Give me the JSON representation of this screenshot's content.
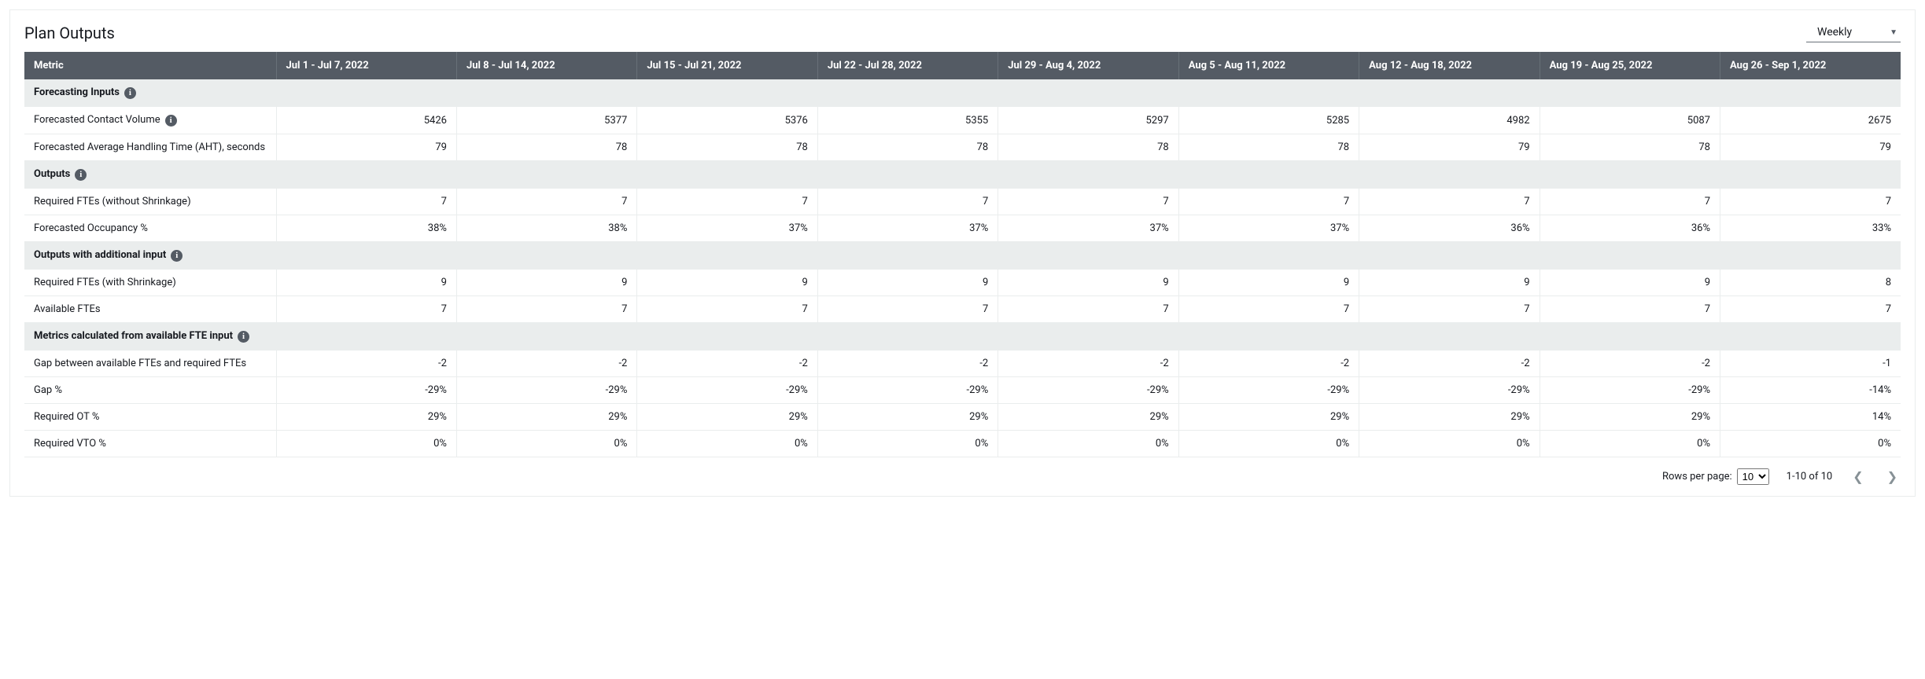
{
  "panel": {
    "title": "Plan Outputs",
    "period_selector_label": "Weekly"
  },
  "table": {
    "metric_header": "Metric",
    "columns": [
      "Jul 1 - Jul 7, 2022",
      "Jul 8 - Jul 14, 2022",
      "Jul 15 - Jul 21, 2022",
      "Jul 22 - Jul 28, 2022",
      "Jul 29 - Aug 4, 2022",
      "Aug 5 - Aug 11, 2022",
      "Aug 12 - Aug 18, 2022",
      "Aug 19 - Aug 25, 2022",
      "Aug 26 - Sep 1, 2022"
    ],
    "sections": [
      {
        "title": "Forecasting Inputs",
        "has_info": true,
        "rows": [
          {
            "label": "Forecasted Contact Volume",
            "has_info": true,
            "values": [
              "5426",
              "5377",
              "5376",
              "5355",
              "5297",
              "5285",
              "4982",
              "5087",
              "2675"
            ]
          },
          {
            "label": "Forecasted Average Handling Time (AHT), seconds",
            "has_info": false,
            "values": [
              "79",
              "78",
              "78",
              "78",
              "78",
              "78",
              "79",
              "78",
              "79"
            ]
          }
        ]
      },
      {
        "title": "Outputs",
        "has_info": true,
        "rows": [
          {
            "label": "Required FTEs (without Shrinkage)",
            "has_info": false,
            "values": [
              "7",
              "7",
              "7",
              "7",
              "7",
              "7",
              "7",
              "7",
              "7"
            ]
          },
          {
            "label": "Forecasted Occupancy %",
            "has_info": false,
            "values": [
              "38%",
              "38%",
              "37%",
              "37%",
              "37%",
              "37%",
              "36%",
              "36%",
              "33%"
            ]
          }
        ]
      },
      {
        "title": "Outputs with additional input",
        "has_info": true,
        "rows": [
          {
            "label": "Required FTEs (with Shrinkage)",
            "has_info": false,
            "values": [
              "9",
              "9",
              "9",
              "9",
              "9",
              "9",
              "9",
              "9",
              "8"
            ]
          },
          {
            "label": "Available FTEs",
            "has_info": false,
            "values": [
              "7",
              "7",
              "7",
              "7",
              "7",
              "7",
              "7",
              "7",
              "7"
            ]
          }
        ]
      },
      {
        "title": "Metrics calculated from available FTE input",
        "has_info": true,
        "rows": [
          {
            "label": "Gap between available FTEs and required FTEs",
            "has_info": false,
            "values": [
              "-2",
              "-2",
              "-2",
              "-2",
              "-2",
              "-2",
              "-2",
              "-2",
              "-1"
            ]
          },
          {
            "label": "Gap %",
            "has_info": false,
            "values": [
              "-29%",
              "-29%",
              "-29%",
              "-29%",
              "-29%",
              "-29%",
              "-29%",
              "-29%",
              "-14%"
            ]
          },
          {
            "label": "Required OT %",
            "has_info": false,
            "values": [
              "29%",
              "29%",
              "29%",
              "29%",
              "29%",
              "29%",
              "29%",
              "29%",
              "14%"
            ]
          },
          {
            "label": "Required VTO %",
            "has_info": false,
            "values": [
              "0%",
              "0%",
              "0%",
              "0%",
              "0%",
              "0%",
              "0%",
              "0%",
              "0%"
            ]
          }
        ]
      }
    ]
  },
  "pager": {
    "rows_per_page_label": "Rows per page:",
    "rows_per_page_value": "10",
    "range_text": "1-10 of 10"
  },
  "colors": {
    "header_bg": "#545b64",
    "header_text": "#ffffff",
    "section_bg": "#eaeded",
    "border": "#eaeded",
    "text": "#16191f",
    "muted": "#879196"
  }
}
